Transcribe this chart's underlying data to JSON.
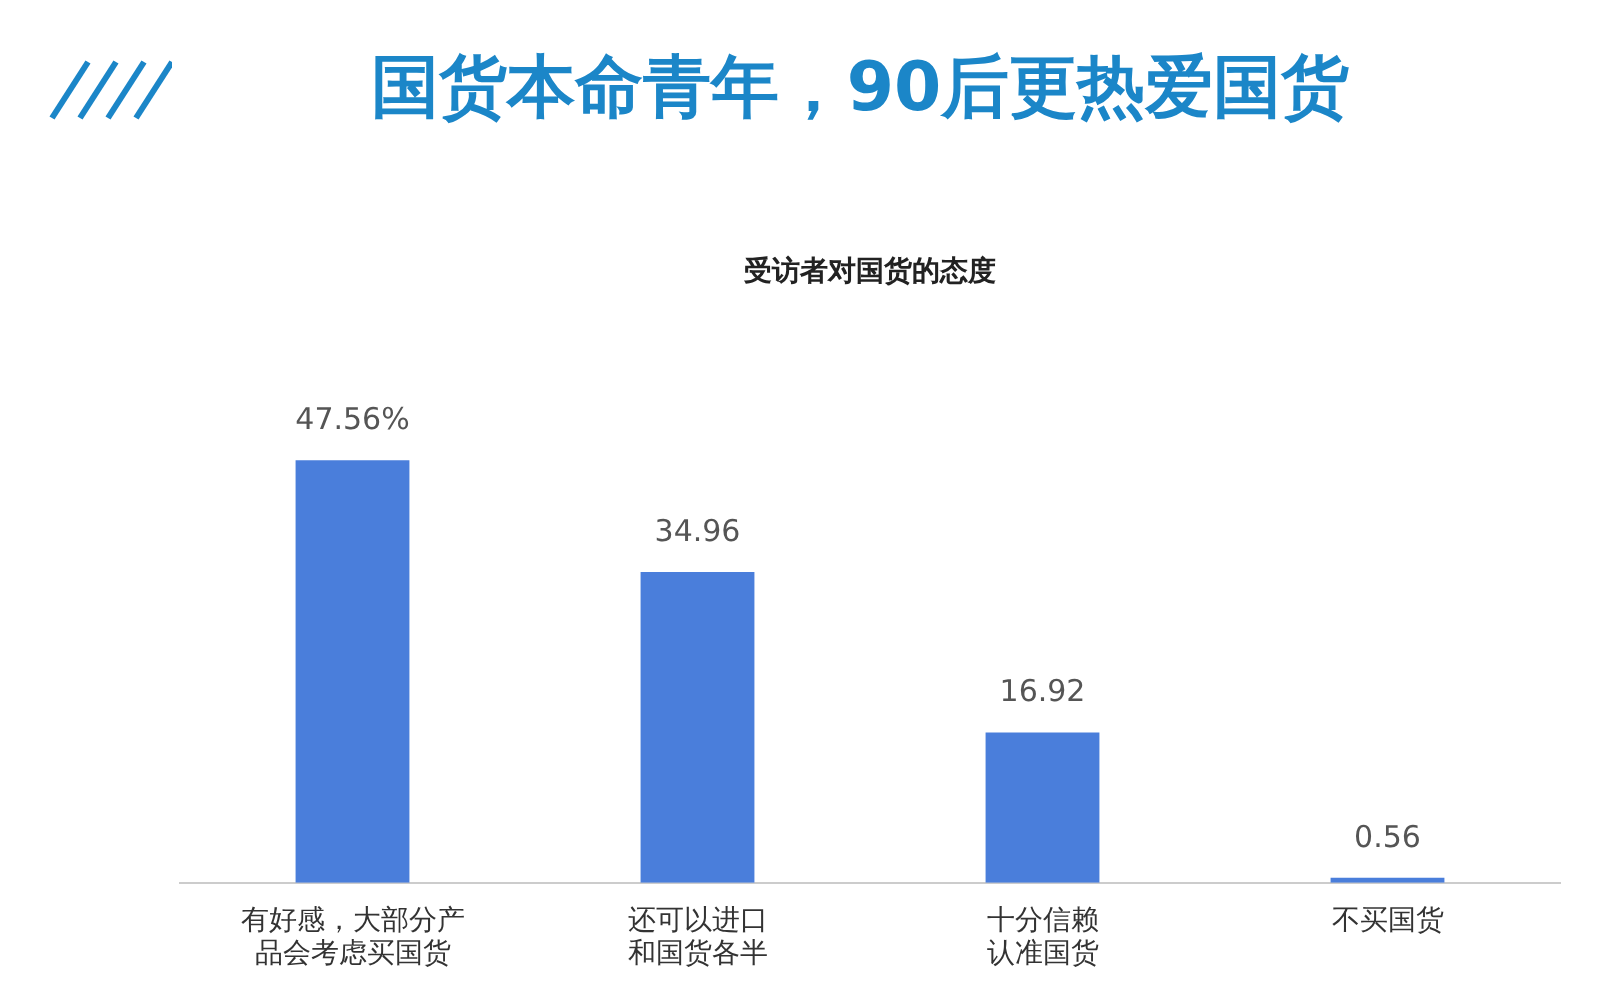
{
  "chart_data": {
    "type": "bar",
    "title": "受访者对国货的态度",
    "annotations": [
      "国货本命青年，90后更热爱国货"
    ],
    "categories": [
      "有好感，大部分产品会考虑买国货",
      "还可以进口和国货各半",
      "十分信赖认准国货",
      "不买国货"
    ],
    "values": [
      47.56,
      34.96,
      16.92,
      0.56
    ],
    "value_labels": [
      "47.56%",
      "34.96",
      "16.92",
      "0.56"
    ],
    "color": "#4a7edb",
    "grid": false,
    "legend": false
  }
}
